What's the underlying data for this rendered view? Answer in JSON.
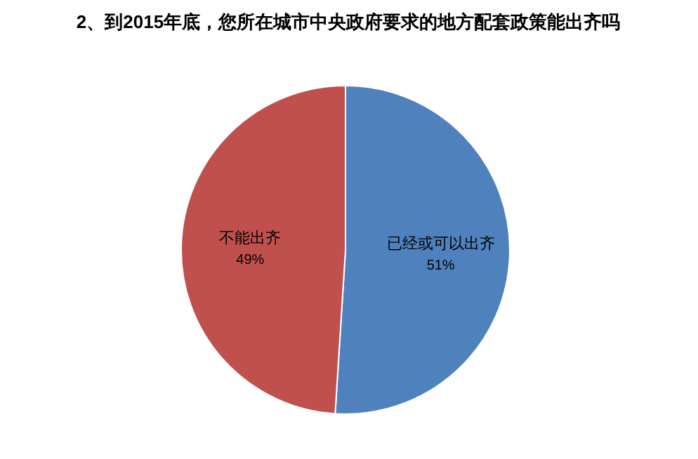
{
  "chart_data": {
    "type": "pie",
    "title": "2、到2015年底，您所在城市中央政府要求的地方配套政策能出齐吗",
    "categories": [
      "已经或可以出齐",
      "不能出齐"
    ],
    "values": [
      51,
      49
    ],
    "value_labels": [
      "51%",
      "49%"
    ],
    "colors": [
      "#4f81bd",
      "#c0504d"
    ],
    "legend": false
  }
}
